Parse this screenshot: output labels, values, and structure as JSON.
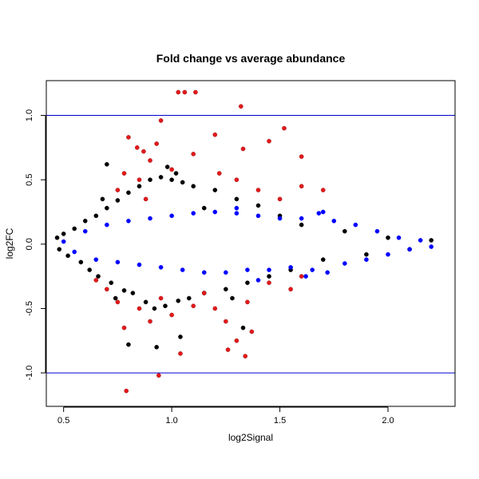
{
  "chart_data": {
    "type": "scatter",
    "title": "Fold change vs average abundance",
    "xlabel": "log2Signal",
    "ylabel": "log2FC",
    "xlim": [
      0.42,
      2.31
    ],
    "ylim": [
      -1.26,
      1.27
    ],
    "x_ticks": [
      0.5,
      1.0,
      1.5,
      2.0
    ],
    "x_tick_labels": [
      "0.5",
      "1.0",
      "1.5",
      "2.0"
    ],
    "y_ticks": [
      -1.0,
      -0.5,
      0.0,
      0.5,
      1.0
    ],
    "y_tick_labels": [
      "-1.0",
      "-0.5",
      "0.0",
      "0.5",
      "1.0"
    ],
    "reference_lines": {
      "y": [
        1.0,
        -1.0
      ],
      "color": "#0000cc"
    },
    "grid": false,
    "legend": "none",
    "colors": {
      "black": "#000000",
      "blue": "#0000ff",
      "red": "#e31a1c"
    },
    "series": [
      {
        "color_key": "black",
        "points": [
          [
            0.47,
            0.05
          ],
          [
            0.48,
            -0.04
          ],
          [
            0.5,
            0.08
          ],
          [
            0.52,
            -0.09
          ],
          [
            0.55,
            0.12
          ],
          [
            0.58,
            -0.14
          ],
          [
            0.6,
            0.18
          ],
          [
            0.62,
            -0.2
          ],
          [
            0.65,
            0.22
          ],
          [
            0.66,
            -0.25
          ],
          [
            0.7,
            0.28
          ],
          [
            0.72,
            -0.3
          ],
          [
            0.75,
            0.34
          ],
          [
            0.78,
            -0.36
          ],
          [
            0.8,
            0.4
          ],
          [
            0.82,
            -0.38
          ],
          [
            0.85,
            0.45
          ],
          [
            0.88,
            -0.45
          ],
          [
            0.9,
            0.5
          ],
          [
            0.92,
            -0.5
          ],
          [
            0.95,
            0.52
          ],
          [
            0.97,
            -0.48
          ],
          [
            1.0,
            0.5
          ],
          [
            1.03,
            -0.44
          ],
          [
            1.05,
            0.48
          ],
          [
            1.08,
            -0.42
          ],
          [
            1.1,
            0.45
          ],
          [
            1.15,
            -0.38
          ],
          [
            1.2,
            0.42
          ],
          [
            1.25,
            -0.35
          ],
          [
            1.3,
            0.35
          ],
          [
            1.35,
            -0.3
          ],
          [
            1.4,
            0.3
          ],
          [
            1.45,
            -0.25
          ],
          [
            1.5,
            0.22
          ],
          [
            1.55,
            -0.2
          ],
          [
            1.6,
            0.15
          ],
          [
            1.7,
            -0.12
          ],
          [
            1.8,
            0.1
          ],
          [
            1.9,
            -0.08
          ],
          [
            2.0,
            0.05
          ],
          [
            2.1,
            -0.04
          ],
          [
            2.2,
            0.03
          ],
          [
            0.7,
            0.62
          ],
          [
            0.8,
            -0.78
          ],
          [
            0.93,
            -0.8
          ],
          [
            1.04,
            -0.72
          ],
          [
            1.33,
            -0.65
          ],
          [
            1.02,
            0.55
          ],
          [
            0.98,
            0.6
          ],
          [
            1.15,
            0.28
          ],
          [
            1.28,
            -0.42
          ],
          [
            0.68,
            0.35
          ],
          [
            0.74,
            -0.42
          ]
        ]
      },
      {
        "color_key": "blue",
        "points": [
          [
            0.5,
            0.02
          ],
          [
            0.55,
            -0.06
          ],
          [
            0.6,
            0.1
          ],
          [
            0.65,
            -0.12
          ],
          [
            0.7,
            0.15
          ],
          [
            0.75,
            -0.14
          ],
          [
            0.8,
            0.18
          ],
          [
            0.85,
            -0.16
          ],
          [
            0.9,
            0.2
          ],
          [
            0.95,
            -0.18
          ],
          [
            1.0,
            0.22
          ],
          [
            1.05,
            -0.2
          ],
          [
            1.1,
            0.24
          ],
          [
            1.15,
            -0.22
          ],
          [
            1.2,
            0.25
          ],
          [
            1.25,
            -0.22
          ],
          [
            1.3,
            0.24
          ],
          [
            1.35,
            -0.2
          ],
          [
            1.4,
            0.22
          ],
          [
            1.45,
            -0.2
          ],
          [
            1.5,
            0.2
          ],
          [
            1.55,
            -0.18
          ],
          [
            1.6,
            0.2
          ],
          [
            1.65,
            -0.2
          ],
          [
            1.7,
            0.25
          ],
          [
            1.72,
            -0.22
          ],
          [
            1.75,
            0.18
          ],
          [
            1.8,
            -0.15
          ],
          [
            1.85,
            0.15
          ],
          [
            1.9,
            -0.12
          ],
          [
            1.95,
            0.1
          ],
          [
            2.0,
            -0.08
          ],
          [
            2.05,
            0.05
          ],
          [
            2.1,
            -0.04
          ],
          [
            2.15,
            0.03
          ],
          [
            2.2,
            -0.02
          ],
          [
            1.62,
            -0.25
          ],
          [
            1.68,
            0.24
          ],
          [
            1.4,
            -0.28
          ],
          [
            1.3,
            0.28
          ]
        ]
      },
      {
        "color_key": "red",
        "points": [
          [
            0.8,
            0.83
          ],
          [
            0.84,
            0.75
          ],
          [
            0.87,
            0.72
          ],
          [
            0.9,
            0.65
          ],
          [
            0.93,
            0.78
          ],
          [
            0.95,
            0.96
          ],
          [
            1.03,
            1.18
          ],
          [
            1.06,
            1.18
          ],
          [
            1.11,
            1.18
          ],
          [
            1.2,
            0.85
          ],
          [
            1.32,
            1.07
          ],
          [
            1.33,
            0.74
          ],
          [
            1.45,
            0.8
          ],
          [
            1.52,
            0.9
          ],
          [
            1.6,
            0.68
          ],
          [
            1.1,
            0.7
          ],
          [
            1.22,
            0.55
          ],
          [
            1.0,
            0.58
          ],
          [
            0.85,
            0.5
          ],
          [
            0.78,
            0.55
          ],
          [
            0.75,
            0.42
          ],
          [
            1.3,
            0.5
          ],
          [
            1.4,
            0.42
          ],
          [
            1.6,
            0.45
          ],
          [
            1.5,
            0.35
          ],
          [
            1.7,
            0.42
          ],
          [
            0.79,
            -1.14
          ],
          [
            0.94,
            -1.02
          ],
          [
            1.04,
            -0.85
          ],
          [
            1.26,
            -0.82
          ],
          [
            1.34,
            -0.87
          ],
          [
            1.3,
            -0.75
          ],
          [
            1.37,
            -0.68
          ],
          [
            0.78,
            -0.65
          ],
          [
            0.9,
            -0.6
          ],
          [
            0.85,
            -0.5
          ],
          [
            0.7,
            -0.35
          ],
          [
            0.65,
            -0.28
          ],
          [
            0.75,
            -0.45
          ],
          [
            1.0,
            -0.55
          ],
          [
            1.1,
            -0.48
          ],
          [
            1.2,
            -0.5
          ],
          [
            1.25,
            -0.6
          ],
          [
            1.45,
            -0.3
          ],
          [
            1.55,
            -0.35
          ],
          [
            1.6,
            -0.25
          ],
          [
            0.95,
            -0.42
          ],
          [
            1.15,
            -0.38
          ],
          [
            1.35,
            -0.45
          ],
          [
            0.88,
            0.35
          ]
        ]
      }
    ]
  }
}
